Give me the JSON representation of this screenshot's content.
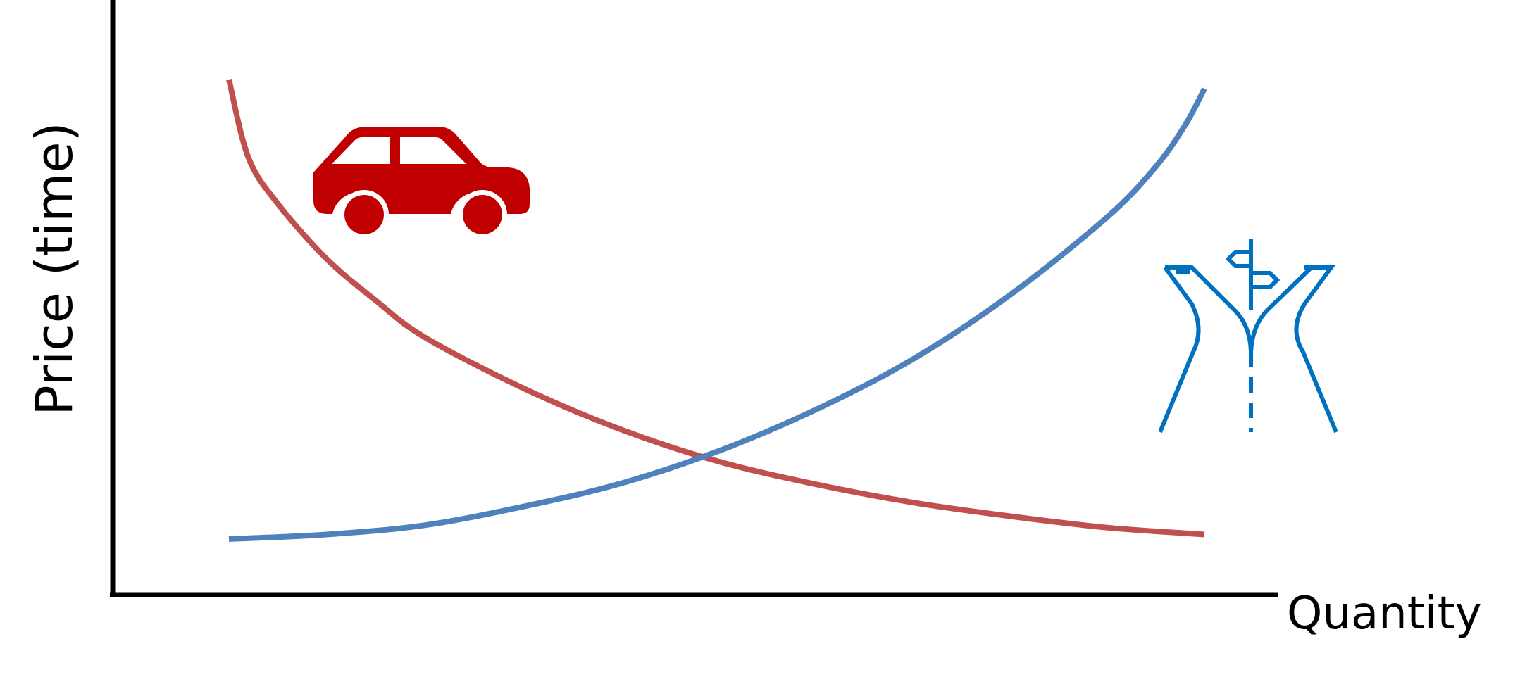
{
  "chart_data": {
    "type": "line",
    "xlabel": "Quantity",
    "ylabel": "Price (time)",
    "grid": false,
    "series": [
      {
        "color": "#c0504d",
        "curve": "demand",
        "x": [
          0.0,
          0.02,
          0.05,
          0.1,
          0.15,
          0.2,
          0.3,
          0.4,
          0.5,
          0.6,
          0.7,
          0.8,
          0.9,
          1.0
        ],
        "y": [
          1.0,
          0.83,
          0.73,
          0.61,
          0.52,
          0.44,
          0.33,
          0.24,
          0.17,
          0.12,
          0.08,
          0.05,
          0.025,
          0.01
        ]
      },
      {
        "color": "#4f81bd",
        "curve": "supply",
        "x": [
          0.0,
          0.1,
          0.2,
          0.3,
          0.4,
          0.5,
          0.6,
          0.7,
          0.8,
          0.9,
          0.95,
          0.98,
          1.0
        ],
        "y": [
          0.0,
          0.01,
          0.03,
          0.07,
          0.12,
          0.19,
          0.28,
          0.39,
          0.53,
          0.7,
          0.81,
          0.9,
          0.98
        ]
      }
    ]
  },
  "icons": {
    "car": {
      "name": "car-icon",
      "color": "#c00000"
    },
    "road": {
      "name": "road-fork-icon",
      "color": "#0070c0"
    }
  }
}
